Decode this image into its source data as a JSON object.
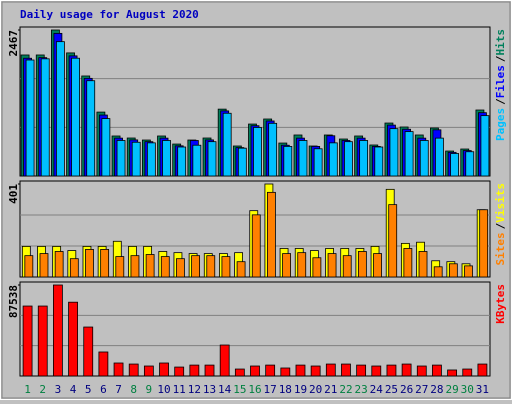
{
  "chart_data": [
    {
      "type": "bar",
      "title": "Daily usage for August 2020",
      "legend_separator": "/",
      "ylim": [
        0,
        2467
      ],
      "yticks": [
        2467
      ],
      "series": [
        {
          "name": "Hits",
          "color": "#00805c",
          "values": [
            2045,
            2045,
            2467,
            2080,
            1690,
            1080,
            676,
            642,
            608,
            676,
            540,
            608,
            642,
            1130,
            507,
            878,
            963,
            557,
            693,
            507,
            693,
            625,
            676,
            524,
            895,
            828,
            693,
            811,
            422,
            456,
            1115
          ]
        },
        {
          "name": "Files",
          "color": "#0000ff",
          "values": [
            1990,
            2000,
            2410,
            2030,
            1650,
            1030,
            640,
            610,
            580,
            640,
            510,
            600,
            610,
            1100,
            480,
            850,
            930,
            520,
            640,
            500,
            680,
            600,
            640,
            500,
            860,
            790,
            640,
            780,
            400,
            430,
            1070
          ]
        },
        {
          "name": "Pages",
          "color": "#00c0ff",
          "values": [
            1960,
            1980,
            2270,
            1990,
            1610,
            970,
            600,
            570,
            560,
            600,
            490,
            520,
            580,
            1060,
            470,
            820,
            890,
            500,
            600,
            460,
            560,
            580,
            600,
            490,
            800,
            750,
            600,
            640,
            380,
            410,
            1020
          ]
        }
      ]
    },
    {
      "type": "bar",
      "legend_separator": "/",
      "ylim": [
        0,
        401
      ],
      "yticks": [
        401
      ],
      "series": [
        {
          "name": "Visits",
          "color": "#ffff00",
          "values": [
            132,
            132,
            132,
            114,
            132,
            132,
            154,
            132,
            132,
            110,
            105,
            101,
            101,
            101,
            105,
            286,
            401,
            123,
            123,
            114,
            123,
            123,
            123,
            132,
            378,
            145,
            150,
            70,
            66,
            57,
            290
          ]
        },
        {
          "name": "Sites",
          "color": "#ff8000",
          "values": [
            92,
            101,
            110,
            79,
            119,
            119,
            88,
            92,
            97,
            88,
            79,
            92,
            92,
            88,
            66,
            268,
            365,
            101,
            105,
            83,
            101,
            92,
            110,
            101,
            312,
            123,
            110,
            44,
            57,
            48,
            290
          ]
        }
      ]
    },
    {
      "type": "bar",
      "ylim": [
        0,
        87538
      ],
      "yticks": [
        87538
      ],
      "categories": [
        "1",
        "2",
        "3",
        "4",
        "5",
        "6",
        "7",
        "8",
        "9",
        "10",
        "11",
        "12",
        "13",
        "14",
        "15",
        "16",
        "17",
        "18",
        "19",
        "20",
        "21",
        "22",
        "23",
        "24",
        "25",
        "26",
        "27",
        "28",
        "29",
        "30",
        "31"
      ],
      "category_colors": [
        "#008040",
        "#008040",
        "#000080",
        "#000080",
        "#000080",
        "#000080",
        "#000080",
        "#008040",
        "#008040",
        "#000080",
        "#000080",
        "#000080",
        "#000080",
        "#000080",
        "#008040",
        "#008040",
        "#000080",
        "#000080",
        "#000080",
        "#000080",
        "#000080",
        "#008040",
        "#008040",
        "#000080",
        "#000080",
        "#000080",
        "#000080",
        "#000080",
        "#008040",
        "#008040",
        "#000080"
      ],
      "series": [
        {
          "name": "KBytes",
          "color": "#ff0000",
          "values": [
            67300,
            67300,
            87538,
            71000,
            47100,
            23100,
            12500,
            11500,
            9600,
            12500,
            8600,
            10500,
            10500,
            29800,
            6700,
            9600,
            10500,
            7700,
            10500,
            9600,
            11500,
            11500,
            10500,
            9600,
            10500,
            11500,
            9600,
            10500,
            5800,
            6700,
            11500
          ]
        }
      ]
    }
  ]
}
